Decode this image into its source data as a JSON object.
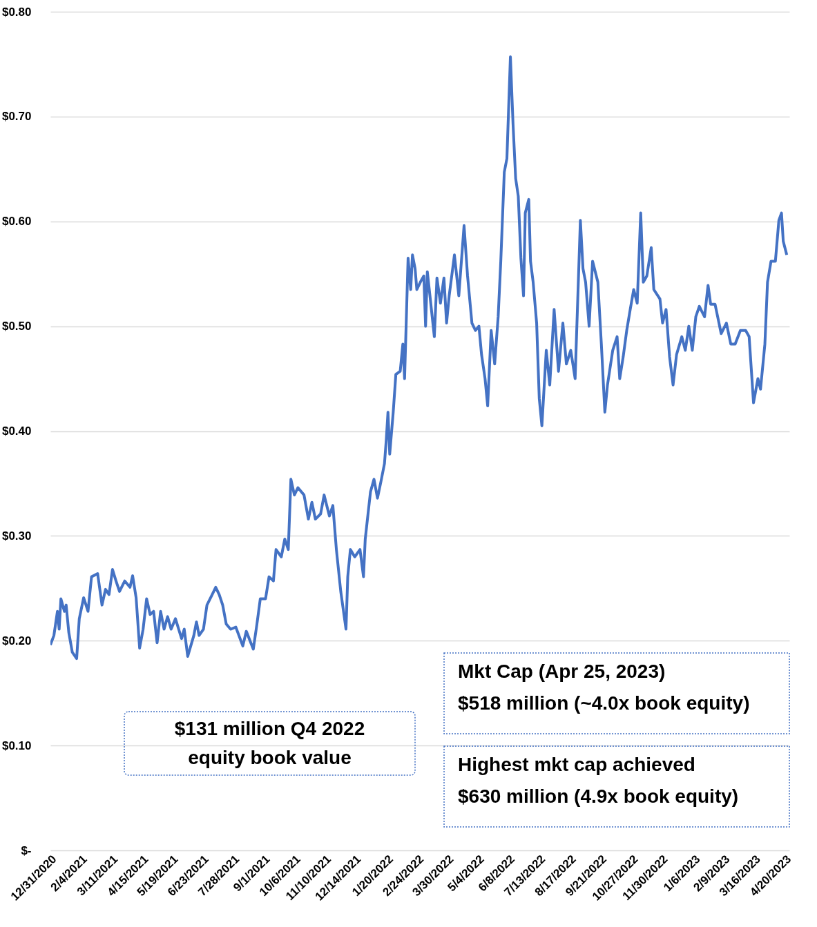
{
  "chart_data": {
    "type": "line",
    "color": "#4472c4",
    "grid": "y",
    "line_style": "solid",
    "marker": "none",
    "annotations": [
      "Mkt Cap (Apr 25, 2023)\n$518 million (~4.0x book equity)",
      "Highest mkt cap achieved\n$630 million (4.9x book equity)",
      "$131 million Q4 2022\nequity book value"
    ],
    "xlim": [
      "2020-12-31",
      "2023-04-25"
    ],
    "xticks": [
      {
        "value": "2020-12-31",
        "label": "12/31/2020"
      },
      {
        "value": "2021-02-04",
        "label": "2/4/2021"
      },
      {
        "value": "2021-03-11",
        "label": "3/11/2021"
      },
      {
        "value": "2021-04-15",
        "label": "4/15/2021"
      },
      {
        "value": "2021-05-19",
        "label": "5/19/2021"
      },
      {
        "value": "2021-06-23",
        "label": "6/23/2021"
      },
      {
        "value": "2021-07-28",
        "label": "7/28/2021"
      },
      {
        "value": "2021-09-01",
        "label": "9/1/2021"
      },
      {
        "value": "2021-10-06",
        "label": "10/6/2021"
      },
      {
        "value": "2021-11-10",
        "label": "11/10/2021"
      },
      {
        "value": "2021-12-14",
        "label": "12/14/2021"
      },
      {
        "value": "2022-01-20",
        "label": "1/20/2022"
      },
      {
        "value": "2022-02-24",
        "label": "2/24/2022"
      },
      {
        "value": "2022-03-30",
        "label": "3/30/2022"
      },
      {
        "value": "2022-05-04",
        "label": "5/4/2022"
      },
      {
        "value": "2022-06-08",
        "label": "6/8/2022"
      },
      {
        "value": "2022-07-13",
        "label": "7/13/2022"
      },
      {
        "value": "2022-08-17",
        "label": "8/17/2022"
      },
      {
        "value": "2022-09-21",
        "label": "9/21/2022"
      },
      {
        "value": "2022-10-27",
        "label": "10/27/2022"
      },
      {
        "value": "2022-11-30",
        "label": "11/30/2022"
      },
      {
        "value": "2023-01-06",
        "label": "1/6/2023"
      },
      {
        "value": "2023-02-09",
        "label": "2/9/2023"
      },
      {
        "value": "2023-03-16",
        "label": "3/16/2023"
      },
      {
        "value": "2023-04-20",
        "label": "4/20/2023"
      }
    ],
    "ylim": [
      0,
      0.8
    ],
    "yticks": [
      {
        "value": 0,
        "label": "$-"
      },
      {
        "value": 0.1,
        "label": "$0.10"
      },
      {
        "value": 0.2,
        "label": "$0.20"
      },
      {
        "value": 0.3,
        "label": "$0.30"
      },
      {
        "value": 0.4,
        "label": "$0.40"
      },
      {
        "value": 0.5,
        "label": "$0.50"
      },
      {
        "value": 0.6,
        "label": "$0.60"
      },
      {
        "value": 0.7,
        "label": "$0.70"
      },
      {
        "value": 0.8,
        "label": "$0.80"
      }
    ],
    "x": [
      "2020-12-31",
      "2021-01-04",
      "2021-01-08",
      "2021-01-10",
      "2021-01-12",
      "2021-01-16",
      "2021-01-18",
      "2021-01-21",
      "2021-01-25",
      "2021-01-30",
      "2021-02-02",
      "2021-02-07",
      "2021-02-12",
      "2021-02-16",
      "2021-02-23",
      "2021-02-28",
      "2021-03-04",
      "2021-03-08",
      "2021-03-12",
      "2021-03-16",
      "2021-03-20",
      "2021-03-26",
      "2021-04-01",
      "2021-04-04",
      "2021-04-08",
      "2021-04-12",
      "2021-04-16",
      "2021-04-20",
      "2021-04-24",
      "2021-04-28",
      "2021-05-02",
      "2021-05-06",
      "2021-05-10",
      "2021-05-14",
      "2021-05-18",
      "2021-05-23",
      "2021-05-30",
      "2021-06-02",
      "2021-06-06",
      "2021-06-13",
      "2021-06-16",
      "2021-06-19",
      "2021-06-24",
      "2021-06-28",
      "2021-07-04",
      "2021-07-08",
      "2021-07-12",
      "2021-07-16",
      "2021-07-20",
      "2021-07-25",
      "2021-07-31",
      "2021-08-08",
      "2021-08-12",
      "2021-08-20",
      "2021-08-24",
      "2021-08-28",
      "2021-09-03",
      "2021-09-07",
      "2021-09-12",
      "2021-09-15",
      "2021-09-21",
      "2021-09-25",
      "2021-09-29",
      "2021-10-02",
      "2021-10-06",
      "2021-10-10",
      "2021-10-17",
      "2021-10-22",
      "2021-10-26",
      "2021-10-30",
      "2021-11-05",
      "2021-11-09",
      "2021-11-15",
      "2021-11-19",
      "2021-11-23",
      "2021-11-28",
      "2021-12-04",
      "2021-12-06",
      "2021-12-09",
      "2021-12-14",
      "2021-12-20",
      "2021-12-24",
      "2021-12-26",
      "2022-01-01",
      "2022-01-05",
      "2022-01-09",
      "2022-01-13",
      "2022-01-17",
      "2022-01-19",
      "2022-01-21",
      "2022-01-23",
      "2022-01-27",
      "2022-01-30",
      "2022-02-04",
      "2022-02-07",
      "2022-02-09",
      "2022-02-13",
      "2022-02-16",
      "2022-02-18",
      "2022-02-21",
      "2022-02-23",
      "2022-02-27",
      "2022-03-03",
      "2022-03-05",
      "2022-03-07",
      "2022-03-10",
      "2022-03-15",
      "2022-03-18",
      "2022-03-22",
      "2022-03-26",
      "2022-03-29",
      "2022-04-01",
      "2022-04-07",
      "2022-04-12",
      "2022-04-18",
      "2022-04-22",
      "2022-04-27",
      "2022-05-01",
      "2022-05-05",
      "2022-05-08",
      "2022-05-12",
      "2022-05-15",
      "2022-05-19",
      "2022-05-23",
      "2022-05-27",
      "2022-05-30",
      "2022-06-03",
      "2022-06-06",
      "2022-06-10",
      "2022-06-13",
      "2022-06-16",
      "2022-06-19",
      "2022-06-22",
      "2022-06-25",
      "2022-06-27",
      "2022-07-01",
      "2022-07-03",
      "2022-07-06",
      "2022-07-10",
      "2022-07-13",
      "2022-07-16",
      "2022-07-21",
      "2022-07-25",
      "2022-07-30",
      "2022-08-04",
      "2022-08-09",
      "2022-08-13",
      "2022-08-18",
      "2022-08-23",
      "2022-08-29",
      "2022-09-01",
      "2022-09-04",
      "2022-09-08",
      "2022-09-12",
      "2022-09-18",
      "2022-09-22",
      "2022-09-26",
      "2022-09-29",
      "2022-10-05",
      "2022-10-10",
      "2022-10-13",
      "2022-10-17",
      "2022-10-21",
      "2022-10-25",
      "2022-10-29",
      "2022-11-02",
      "2022-11-06",
      "2022-11-09",
      "2022-11-13",
      "2022-11-18",
      "2022-11-21",
      "2022-11-28",
      "2022-12-01",
      "2022-12-05",
      "2022-12-09",
      "2022-12-13",
      "2022-12-17",
      "2022-12-23",
      "2022-12-27",
      "2022-12-31",
      "2023-01-04",
      "2023-01-08",
      "2023-01-12",
      "2023-01-18",
      "2023-01-22",
      "2023-01-25",
      "2023-01-30",
      "2023-02-02",
      "2023-02-06",
      "2023-02-12",
      "2023-02-17",
      "2023-02-22",
      "2023-02-28",
      "2023-03-06",
      "2023-03-10",
      "2023-03-15",
      "2023-03-20",
      "2023-03-23",
      "2023-03-28",
      "2023-03-31",
      "2023-04-04",
      "2023-04-09",
      "2023-04-13",
      "2023-04-16",
      "2023-04-18",
      "2023-04-22"
    ],
    "values": [
      0.196,
      0.205,
      0.228,
      0.211,
      0.24,
      0.228,
      0.234,
      0.208,
      0.189,
      0.183,
      0.221,
      0.241,
      0.228,
      0.261,
      0.264,
      0.234,
      0.249,
      0.244,
      0.268,
      0.257,
      0.247,
      0.257,
      0.251,
      0.262,
      0.241,
      0.193,
      0.211,
      0.24,
      0.225,
      0.228,
      0.198,
      0.228,
      0.211,
      0.223,
      0.211,
      0.221,
      0.202,
      0.211,
      0.185,
      0.205,
      0.218,
      0.205,
      0.211,
      0.234,
      0.244,
      0.251,
      0.244,
      0.234,
      0.216,
      0.211,
      0.213,
      0.195,
      0.209,
      0.192,
      0.215,
      0.24,
      0.24,
      0.261,
      0.257,
      0.287,
      0.28,
      0.297,
      0.287,
      0.354,
      0.339,
      0.346,
      0.339,
      0.316,
      0.332,
      0.316,
      0.321,
      0.339,
      0.319,
      0.329,
      0.287,
      0.247,
      0.211,
      0.261,
      0.287,
      0.28,
      0.287,
      0.261,
      0.297,
      0.342,
      0.354,
      0.336,
      0.352,
      0.369,
      0.391,
      0.418,
      0.378,
      0.418,
      0.454,
      0.457,
      0.483,
      0.45,
      0.565,
      0.535,
      0.568,
      0.555,
      0.535,
      0.542,
      0.548,
      0.5,
      0.552,
      0.529,
      0.49,
      0.546,
      0.522,
      0.546,
      0.503,
      0.529,
      0.568,
      0.529,
      0.596,
      0.548,
      0.503,
      0.496,
      0.5,
      0.473,
      0.45,
      0.424,
      0.496,
      0.464,
      0.509,
      0.562,
      0.647,
      0.66,
      0.757,
      0.693,
      0.641,
      0.624,
      0.565,
      0.529,
      0.608,
      0.621,
      0.562,
      0.542,
      0.503,
      0.431,
      0.405,
      0.477,
      0.444,
      0.516,
      0.457,
      0.503,
      0.464,
      0.477,
      0.45,
      0.601,
      0.555,
      0.542,
      0.5,
      0.562,
      0.542,
      0.483,
      0.418,
      0.444,
      0.477,
      0.49,
      0.45,
      0.471,
      0.496,
      0.516,
      0.535,
      0.522,
      0.608,
      0.542,
      0.548,
      0.575,
      0.535,
      0.526,
      0.503,
      0.516,
      0.471,
      0.444,
      0.473,
      0.49,
      0.477,
      0.5,
      0.477,
      0.509,
      0.519,
      0.509,
      0.539,
      0.521,
      0.521,
      0.509,
      0.493,
      0.503,
      0.483,
      0.483,
      0.496,
      0.496,
      0.49,
      0.427,
      0.45,
      0.44,
      0.483,
      0.542,
      0.562,
      0.562,
      0.601,
      0.608,
      0.581,
      0.568
    ]
  }
}
